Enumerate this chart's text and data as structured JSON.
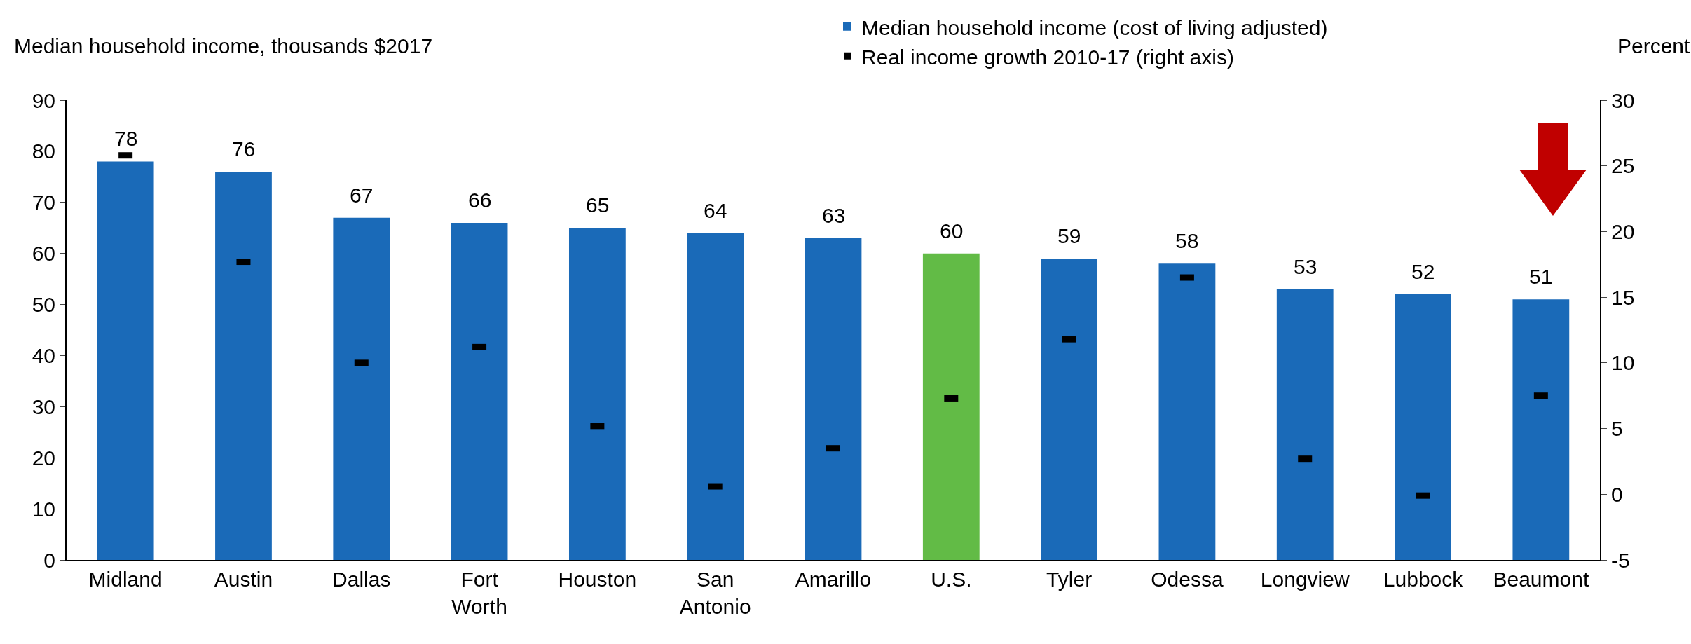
{
  "chart_data": {
    "type": "bar",
    "ylabel": "Median household income, thousands $2017",
    "y2label": "Percent",
    "categories": [
      "Midland",
      "Austin",
      "Dallas",
      "Fort Worth",
      "Houston",
      "San Antonio",
      "Amarillo",
      "U.S.",
      "Tyler",
      "Odessa",
      "Longview",
      "Lubbock",
      "Beaumont"
    ],
    "series": [
      {
        "name": "Median household income (cost of living adjusted)",
        "colors": [
          "#1a6ab8",
          "#1a6ab8",
          "#1a6ab8",
          "#1a6ab8",
          "#1a6ab8",
          "#1a6ab8",
          "#1a6ab8",
          "#62bb46",
          "#1a6ab8",
          "#1a6ab8",
          "#1a6ab8",
          "#1a6ab8",
          "#1a6ab8"
        ],
        "values": [
          78,
          76,
          67,
          66,
          65,
          64,
          63,
          60,
          59,
          58,
          53,
          52,
          51
        ],
        "value_labels": [
          "78",
          "76",
          "67",
          "66",
          "65",
          "64",
          "63",
          "60",
          "59",
          "58",
          "53",
          "52",
          "51"
        ]
      },
      {
        "name": "Real income growth 2010-17 (right axis)",
        "type": "scatter",
        "axis": "y2",
        "color": "#000000",
        "values": [
          25.8,
          17.7,
          10.0,
          11.2,
          5.2,
          0.6,
          3.5,
          7.3,
          11.8,
          16.5,
          2.7,
          -0.1,
          7.5
        ]
      }
    ],
    "ylim": [
      0,
      90
    ],
    "yticks": [
      0,
      10,
      20,
      30,
      40,
      50,
      60,
      70,
      80,
      90
    ],
    "y2lim": [
      -5,
      30
    ],
    "y2ticks": [
      -5,
      0,
      5,
      10,
      15,
      20,
      25,
      30
    ],
    "grid": false,
    "legend": "top"
  }
}
